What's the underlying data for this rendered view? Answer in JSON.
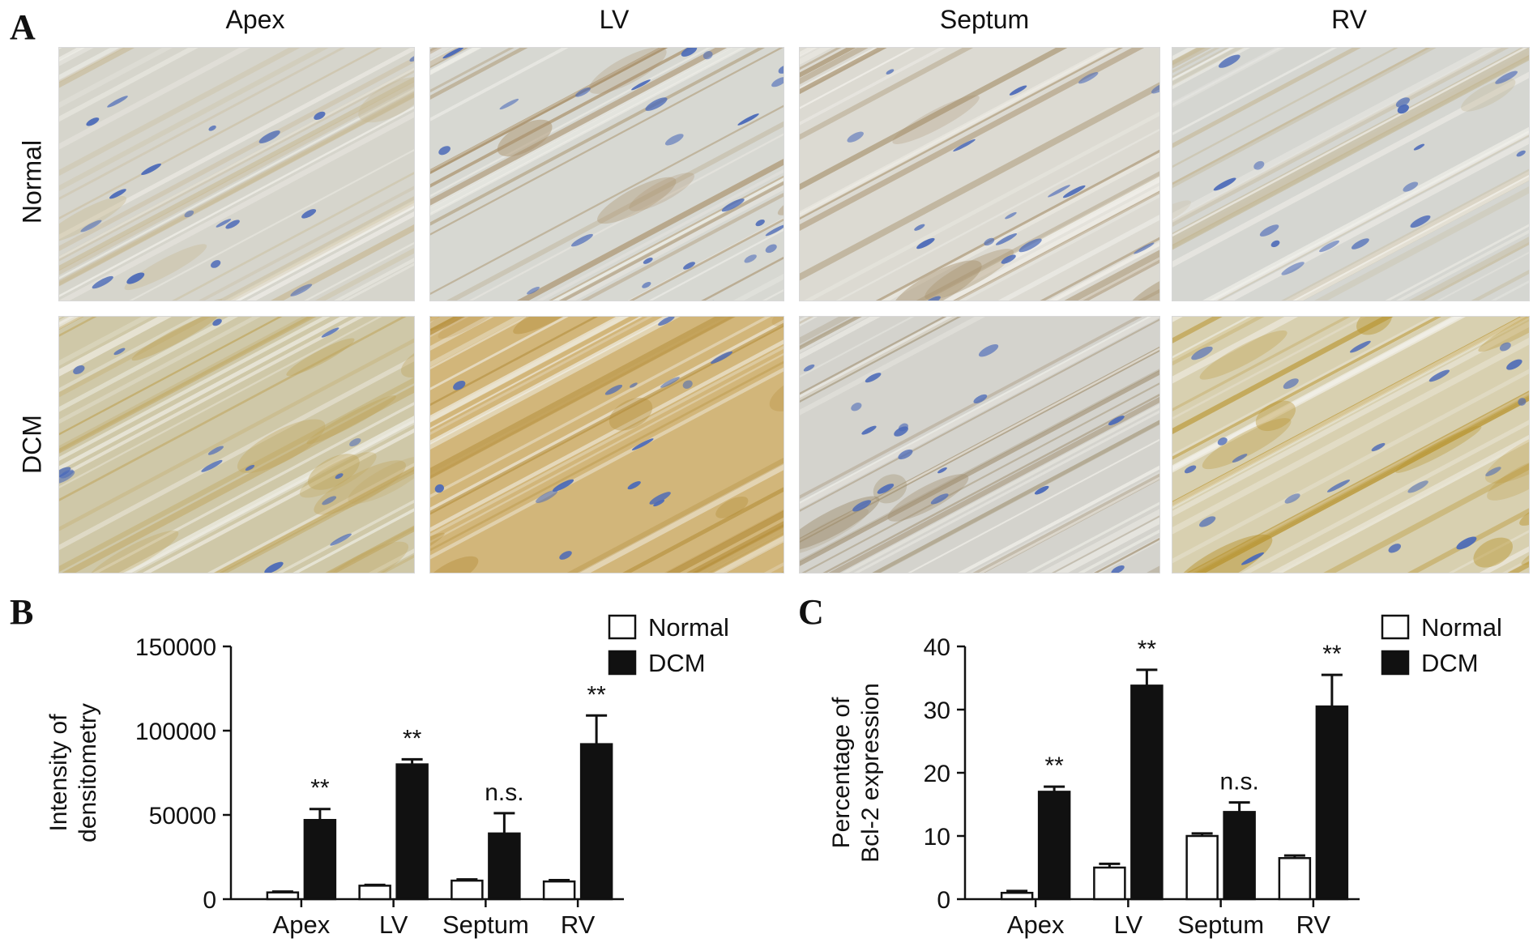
{
  "panel_a": {
    "letter": "A",
    "columns": [
      "Apex",
      "LV",
      "Septum",
      "RV"
    ],
    "rows": [
      "Normal",
      "DCM"
    ],
    "colors": {
      "nuclei": "#4a69b8",
      "tissue_light": "#d9d8cf",
      "stain_brown": "#b8942f"
    }
  },
  "panel_b": {
    "letter": "B"
  },
  "panel_c": {
    "letter": "C"
  },
  "chart_data": [
    {
      "type": "bar",
      "panel": "B",
      "categories": [
        "Apex",
        "LV",
        "Septum",
        "RV"
      ],
      "series": [
        {
          "name": "Normal",
          "values": [
            4000,
            8000,
            11000,
            10500
          ],
          "errors": [
            500,
            500,
            700,
            800
          ],
          "color": "#ffffff"
        },
        {
          "name": "DCM",
          "values": [
            47000,
            80000,
            39000,
            92000
          ],
          "errors": [
            6500,
            3000,
            12000,
            17000
          ],
          "color": "#111111"
        }
      ],
      "annotations": [
        "**",
        "**",
        "n.s.",
        "**"
      ],
      "ylabel": [
        "Intensity of",
        "densitometry"
      ],
      "ylim": [
        0,
        150000
      ],
      "yticks": [
        0,
        50000,
        100000,
        150000
      ],
      "legend": "top-right",
      "grid": false
    },
    {
      "type": "bar",
      "panel": "C",
      "categories": [
        "Apex",
        "LV",
        "Septum",
        "RV"
      ],
      "series": [
        {
          "name": "Normal",
          "values": [
            1,
            5,
            10,
            6.5
          ],
          "errors": [
            0.3,
            0.6,
            0.4,
            0.4
          ],
          "color": "#ffffff"
        },
        {
          "name": "DCM",
          "values": [
            17,
            33.8,
            13.8,
            30.5
          ],
          "errors": [
            0.8,
            2.5,
            1.5,
            5
          ],
          "color": "#111111"
        }
      ],
      "annotations": [
        "**",
        "**",
        "n.s.",
        "**"
      ],
      "ylabel": [
        "Percentage of",
        "Bcl-2 expression"
      ],
      "ylim": [
        0,
        40
      ],
      "yticks": [
        0,
        10,
        20,
        30,
        40
      ],
      "legend": "top-right",
      "grid": false
    }
  ]
}
